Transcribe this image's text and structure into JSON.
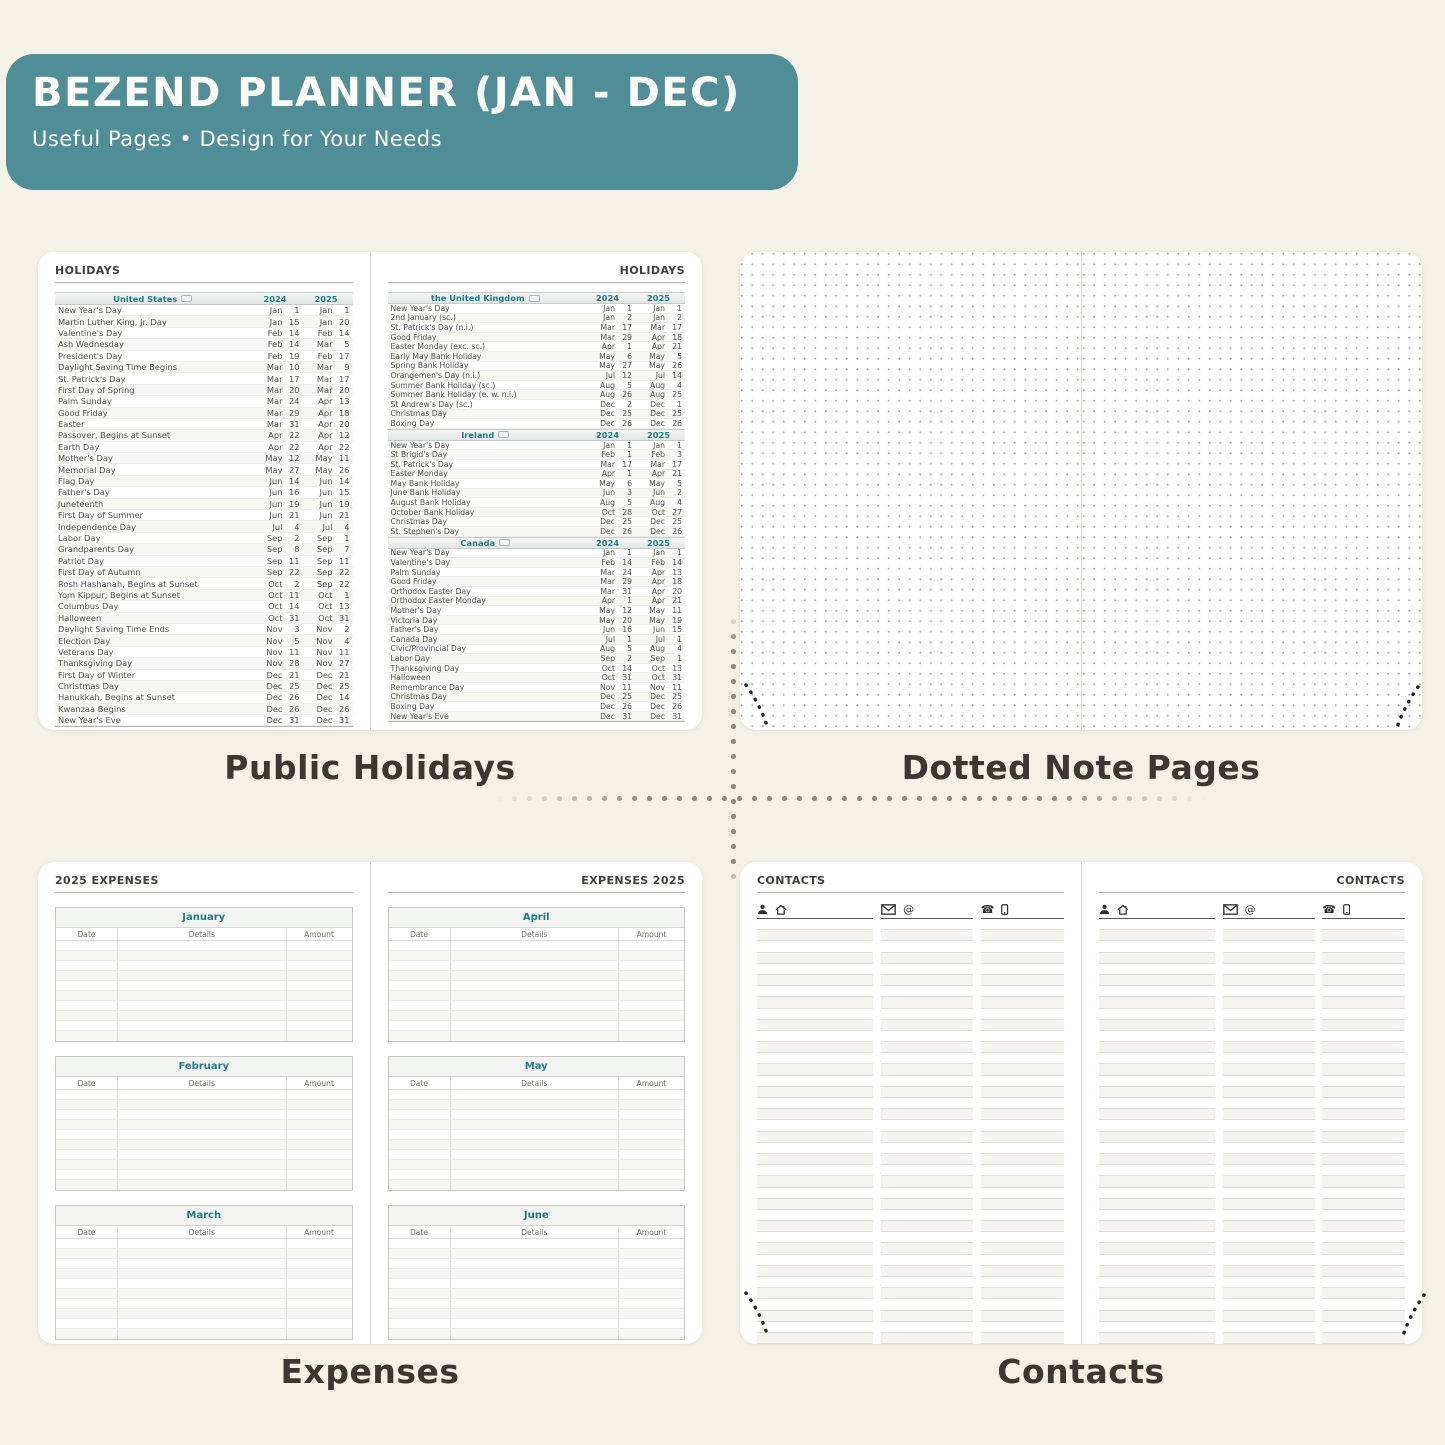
{
  "colors": {
    "canvas_bg": "#f4f1e7",
    "banner_bg": "#4f8e96",
    "banner_text": "#fcfbf6",
    "accent_teal": "#1f7b83",
    "page_bg": "#ffffff",
    "caption_text": "#3a3833"
  },
  "banner": {
    "title": "BEZEND PLANNER (JAN - DEC)",
    "subtitle": "Useful Pages  •  Design for Your Needs"
  },
  "captions": {
    "holidays": "Public Holidays",
    "notes": "Dotted Note Pages",
    "expenses": "Expenses",
    "contacts": "Contacts"
  },
  "holidays": {
    "page_title": "HOLIDAYS",
    "years": [
      "2024",
      "2025"
    ],
    "regions": [
      {
        "name": "United States",
        "page": "left",
        "rows": [
          [
            "New Year's Day",
            "Jan",
            1,
            "Jan",
            1
          ],
          [
            "Martin Luther King, Jr. Day",
            "Jan",
            15,
            "Jan",
            20
          ],
          [
            "Valentine's Day",
            "Feb",
            14,
            "Feb",
            14
          ],
          [
            "Ash Wednesday",
            "Feb",
            14,
            "Mar",
            5
          ],
          [
            "President's Day",
            "Feb",
            19,
            "Feb",
            17
          ],
          [
            "Daylight Saving Time Begins",
            "Mar",
            10,
            "Mar",
            9
          ],
          [
            "St. Patrick's Day",
            "Mar",
            17,
            "Mar",
            17
          ],
          [
            "First Day of Spring",
            "Mar",
            20,
            "Mar",
            20
          ],
          [
            "Palm Sunday",
            "Mar",
            24,
            "Apr",
            13
          ],
          [
            "Good Friday",
            "Mar",
            29,
            "Apr",
            18
          ],
          [
            "Easter",
            "Mar",
            31,
            "Apr",
            20
          ],
          [
            "Passover, Begins at Sunset",
            "Apr",
            22,
            "Apr",
            12
          ],
          [
            "Earth Day",
            "Apr",
            22,
            "Apr",
            22
          ],
          [
            "Mother's Day",
            "May",
            12,
            "May",
            11
          ],
          [
            "Memorial Day",
            "May",
            27,
            "May",
            26
          ],
          [
            "Flag Day",
            "Jun",
            14,
            "Jun",
            14
          ],
          [
            "Father's Day",
            "Jun",
            16,
            "Jun",
            15
          ],
          [
            "Juneteenth",
            "Jun",
            19,
            "Jun",
            19
          ],
          [
            "First Day of Summer",
            "Jun",
            21,
            "Jun",
            21
          ],
          [
            "Independence Day",
            "Jul",
            4,
            "Jul",
            4
          ],
          [
            "Labor Day",
            "Sep",
            2,
            "Sep",
            1
          ],
          [
            "Grandparents Day",
            "Sep",
            8,
            "Sep",
            7
          ],
          [
            "Patriot Day",
            "Sep",
            11,
            "Sep",
            11
          ],
          [
            "First Day of Autumn",
            "Sep",
            22,
            "Sep",
            22
          ],
          [
            "Rosh Hashanah, Begins at Sunset",
            "Oct",
            2,
            "Sep",
            22
          ],
          [
            "Yom Kippur, Begins at Sunset",
            "Oct",
            11,
            "Oct",
            1
          ],
          [
            "Columbus Day",
            "Oct",
            14,
            "Oct",
            13
          ],
          [
            "Halloween",
            "Oct",
            31,
            "Oct",
            31
          ],
          [
            "Daylight Saving Time Ends",
            "Nov",
            3,
            "Nov",
            2
          ],
          [
            "Election Day",
            "Nov",
            5,
            "Nov",
            4
          ],
          [
            "Veterans Day",
            "Nov",
            11,
            "Nov",
            11
          ],
          [
            "Thanksgiving Day",
            "Nov",
            28,
            "Nov",
            27
          ],
          [
            "First Day of Winter",
            "Dec",
            21,
            "Dec",
            21
          ],
          [
            "Christmas Day",
            "Dec",
            25,
            "Dec",
            25
          ],
          [
            "Hanukkah, Begins at Sunset",
            "Dec",
            26,
            "Dec",
            14
          ],
          [
            "Kwanzaa Begins",
            "Dec",
            26,
            "Dec",
            26
          ],
          [
            "New Year's Eve",
            "Dec",
            31,
            "Dec",
            31
          ]
        ]
      },
      {
        "name": "the United Kingdom",
        "page": "right",
        "rows": [
          [
            "New Year's Day",
            "Jan",
            1,
            "Jan",
            1
          ],
          [
            "2nd January (sc.)",
            "Jan",
            2,
            "Jan",
            2
          ],
          [
            "St. Patrick's Day (n.i.)",
            "Mar",
            17,
            "Mar",
            17
          ],
          [
            "Good Friday",
            "Mar",
            29,
            "Apr",
            18
          ],
          [
            "Easter Monday (exc. sc.)",
            "Apr",
            1,
            "Apr",
            21
          ],
          [
            "Early May Bank Holiday",
            "May",
            6,
            "May",
            5
          ],
          [
            "Spring Bank Holiday",
            "May",
            27,
            "May",
            26
          ],
          [
            "Orangemen's Day (n.i.)",
            "Jul",
            12,
            "Jul",
            14
          ],
          [
            "Summer Bank Holiday (sc.)",
            "Aug",
            5,
            "Aug",
            4
          ],
          [
            "Summer Bank Holiday (e. w. n.i.)",
            "Aug",
            26,
            "Aug",
            25
          ],
          [
            "St Andrew's Day (sc.)",
            "Dec",
            2,
            "Dec",
            1
          ],
          [
            "Christmas Day",
            "Dec",
            25,
            "Dec",
            25
          ],
          [
            "Boxing Day",
            "Dec",
            26,
            "Dec",
            26
          ]
        ]
      },
      {
        "name": "Ireland",
        "page": "right",
        "rows": [
          [
            "New Year's Day",
            "Jan",
            1,
            "Jan",
            1
          ],
          [
            "St Brigid's Day",
            "Feb",
            1,
            "Feb",
            3
          ],
          [
            "St. Patrick's Day",
            "Mar",
            17,
            "Mar",
            17
          ],
          [
            "Easter Monday",
            "Apr",
            1,
            "Apr",
            21
          ],
          [
            "May Bank Holiday",
            "May",
            6,
            "May",
            5
          ],
          [
            "June Bank Holiday",
            "Jun",
            3,
            "Jun",
            2
          ],
          [
            "August Bank Holiday",
            "Aug",
            5,
            "Aug",
            4
          ],
          [
            "October Bank Holiday",
            "Oct",
            28,
            "Oct",
            27
          ],
          [
            "Christmas Day",
            "Dec",
            25,
            "Dec",
            25
          ],
          [
            "St. Stephen's Day",
            "Dec",
            26,
            "Dec",
            26
          ]
        ]
      },
      {
        "name": "Canada",
        "page": "right",
        "rows": [
          [
            "New Year's Day",
            "Jan",
            1,
            "Jan",
            1
          ],
          [
            "Valentine's Day",
            "Feb",
            14,
            "Feb",
            14
          ],
          [
            "Palm Sunday",
            "Mar",
            24,
            "Apr",
            13
          ],
          [
            "Good Friday",
            "Mar",
            29,
            "Apr",
            18
          ],
          [
            "Orthodox Easter Day",
            "Mar",
            31,
            "Apr",
            20
          ],
          [
            "Orthodox Easter Monday",
            "Apr",
            1,
            "Apr",
            21
          ],
          [
            "Mother's Day",
            "May",
            12,
            "May",
            11
          ],
          [
            "Victoria Day",
            "May",
            20,
            "May",
            19
          ],
          [
            "Father's Day",
            "Jun",
            16,
            "Jun",
            15
          ],
          [
            "Canada Day",
            "Jul",
            1,
            "Jul",
            1
          ],
          [
            "Civic/Provincial Day",
            "Aug",
            5,
            "Aug",
            4
          ],
          [
            "Labor Day",
            "Sep",
            2,
            "Sep",
            1
          ],
          [
            "Thanksgiving Day",
            "Oct",
            14,
            "Oct",
            13
          ],
          [
            "Halloween",
            "Oct",
            31,
            "Oct",
            31
          ],
          [
            "Remembrance Day",
            "Nov",
            11,
            "Nov",
            11
          ],
          [
            "Christmas Day",
            "Dec",
            25,
            "Dec",
            25
          ],
          [
            "Boxing Day",
            "Dec",
            26,
            "Dec",
            26
          ],
          [
            "New Year's Eve",
            "Dec",
            31,
            "Dec",
            31
          ]
        ]
      }
    ]
  },
  "expenses": {
    "left_title": "2025 EXPENSES",
    "right_title": "EXPENSES 2025",
    "columns": [
      "Date",
      "Details",
      "Amount"
    ],
    "rows_per_table": 10,
    "pages": {
      "left": {
        "months": [
          "January",
          "February",
          "March"
        ]
      },
      "right": {
        "months": [
          "April",
          "May",
          "June"
        ]
      }
    }
  },
  "contacts": {
    "page_title": "CONTACTS",
    "lines_per_column": 38,
    "columns": [
      {
        "icons": [
          "person-icon",
          "home-icon"
        ]
      },
      {
        "icons": [
          "mail-icon",
          "at-icon"
        ]
      },
      {
        "icons": [
          "phone-icon",
          "mobile-icon"
        ]
      }
    ]
  }
}
